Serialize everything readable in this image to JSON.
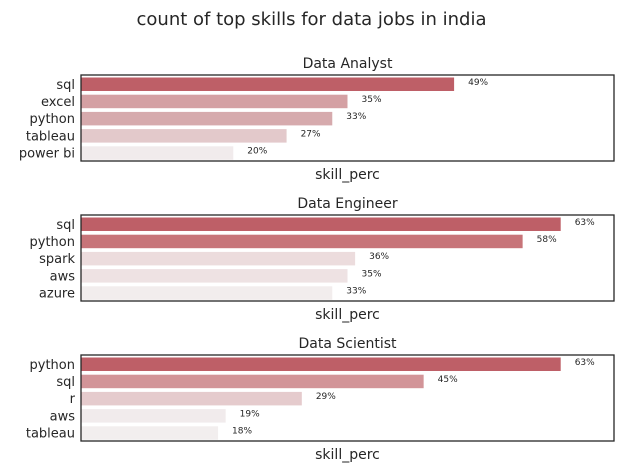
{
  "chart_data": {
    "title": "count of top skills for data jobs in india",
    "type": "bar",
    "orientation": "horizontal",
    "value_format": "{v}%",
    "xlabel": "skill_perc",
    "xlim": [
      0,
      70
    ],
    "grid": false,
    "legend": "none",
    "xticks_visible": false,
    "panels": [
      {
        "title": "Data Analyst",
        "ylabel": "",
        "categories": [
          "sql",
          "excel",
          "python",
          "tableau",
          "power bi"
        ],
        "values": [
          49,
          35,
          33,
          27,
          20
        ],
        "colors": [
          "#be5f67",
          "#d4a0a3",
          "#d6aaad",
          "#e3c9cb",
          "#f1ebec"
        ]
      },
      {
        "title": "Data Engineer",
        "ylabel": "",
        "categories": [
          "sql",
          "python",
          "spark",
          "aws",
          "azure"
        ],
        "values": [
          63,
          58,
          36,
          35,
          33
        ],
        "colors": [
          "#be5f67",
          "#c77479",
          "#ecdcdd",
          "#eee2e3",
          "#f2eded"
        ]
      },
      {
        "title": "Data Scientist",
        "ylabel": "",
        "categories": [
          "python",
          "sql",
          "r",
          "aws",
          "tableau"
        ],
        "values": [
          63,
          45,
          29,
          19,
          18
        ],
        "colors": [
          "#be5f67",
          "#d29498",
          "#e5cbcd",
          "#f1ebec",
          "#f2eeee"
        ]
      }
    ]
  }
}
